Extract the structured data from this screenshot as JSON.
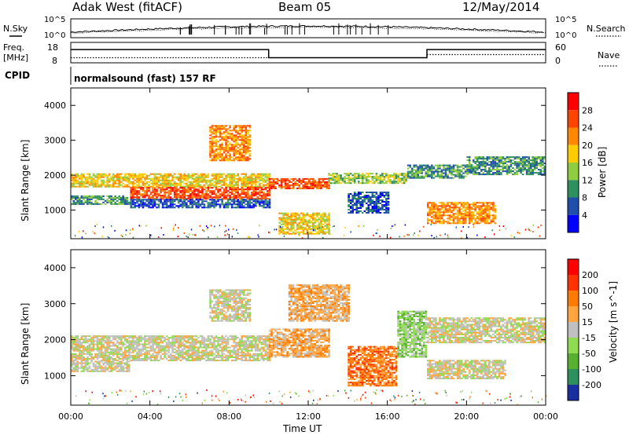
{
  "header": {
    "station": "Adak West (fitACF)",
    "beam": "Beam 05",
    "date": "12/May/2014"
  },
  "side_labels": {
    "nsky": "N.Sky",
    "freq_top": "Freq.",
    "freq_unit": "[MHz]",
    "cpid": "CPID",
    "nsearch": "N.Search",
    "nave": "Nave"
  },
  "cpid_text": "normalsound (fast) 157 RF",
  "x_axis": {
    "label": "Time UT",
    "ticks": [
      "00:00",
      "04:00",
      "08:00",
      "12:00",
      "16:00",
      "20:00",
      "00:00"
    ],
    "range_hours": [
      0,
      24
    ]
  },
  "chart_data": [
    {
      "type": "line",
      "name": "noise",
      "left_ticks": [
        "10^5",
        "10^0"
      ],
      "right_ticks": [
        "10^5",
        "10^0"
      ],
      "scale": "log"
    },
    {
      "type": "line",
      "name": "frequency-nave",
      "left_ticks": [
        "18",
        "8"
      ],
      "left_range": [
        8,
        18
      ],
      "right_ticks": [
        "60",
        "0"
      ],
      "right_range": [
        0,
        60
      ],
      "freq_series": [
        {
          "x": 0,
          "y": 14.5
        },
        {
          "x": 10,
          "y": 14.5
        },
        {
          "x": 10,
          "y": 10.5
        },
        {
          "x": 18,
          "y": 10.5
        },
        {
          "x": 18,
          "y": 14.5
        },
        {
          "x": 24,
          "y": 14.5
        }
      ],
      "nave_value": 15
    },
    {
      "type": "heatmap",
      "name": "power",
      "ylabel": "Slant Range [km]",
      "y_ticks": [
        "1000",
        "2000",
        "3000",
        "4000"
      ],
      "ylim": [
        180,
        4500
      ],
      "colorbar_label": "Power [dB]",
      "colorbar_ticks": [
        "4",
        "8",
        "12",
        "16",
        "20",
        "24",
        "28"
      ],
      "colorbar_range": [
        0,
        32
      ],
      "colors": [
        "#0000ff",
        "#1f4faa",
        "#2f8f5f",
        "#8fcc3f",
        "#ffcc00",
        "#ff8800",
        "#ff4400",
        "#ff0000"
      ],
      "bands": [
        {
          "t0": 0,
          "t1": 10,
          "r0": 1650,
          "r1": 2050,
          "level": 4
        },
        {
          "t0": 3,
          "t1": 10,
          "r0": 1300,
          "r1": 1650,
          "level": 6
        },
        {
          "t0": 0,
          "t1": 3,
          "r0": 1150,
          "r1": 1400,
          "level": 2
        },
        {
          "t0": 3,
          "t1": 10,
          "r0": 1050,
          "r1": 1300,
          "level": 1
        },
        {
          "t0": 7,
          "t1": 9,
          "r0": 2400,
          "r1": 3400,
          "level": 5
        },
        {
          "t0": 10,
          "t1": 13,
          "r0": 1600,
          "r1": 1900,
          "level": 6
        },
        {
          "t0": 13,
          "t1": 17,
          "r0": 1750,
          "r1": 2050,
          "level": 3
        },
        {
          "t0": 14,
          "t1": 16,
          "r0": 900,
          "r1": 1500,
          "level": 1
        },
        {
          "t0": 17,
          "t1": 20,
          "r0": 1900,
          "r1": 2300,
          "level": 2
        },
        {
          "t0": 18,
          "t1": 21.5,
          "r0": 600,
          "r1": 1200,
          "level": 5
        },
        {
          "t0": 20,
          "t1": 24,
          "r0": 2000,
          "r1": 2500,
          "level": 2
        },
        {
          "t0": 10.5,
          "t1": 13,
          "r0": 300,
          "r1": 900,
          "level": 4
        }
      ]
    },
    {
      "type": "heatmap",
      "name": "velocity",
      "ylabel": "Slant Range [km]",
      "y_ticks": [
        "1000",
        "2000",
        "3000",
        "4000"
      ],
      "ylim": [
        180,
        4500
      ],
      "colorbar_label": "Velocity [m s^-1]",
      "colorbar_ticks": [
        "200",
        "100",
        "50",
        "15",
        "-15",
        "-50",
        "-100",
        "-200"
      ],
      "colors": [
        "#1a30a0",
        "#2f8f5f",
        "#58b030",
        "#8fdc50",
        "#c0c0c0",
        "#ffa640",
        "#ff7a00",
        "#ff3300",
        "#ff0000"
      ],
      "bands": [
        {
          "t0": 0,
          "t1": 10,
          "r0": 1400,
          "r1": 2100,
          "level": 4
        },
        {
          "t0": 0,
          "t1": 3,
          "r0": 1100,
          "r1": 1400,
          "level": 4
        },
        {
          "t0": 7,
          "t1": 9,
          "r0": 2500,
          "r1": 3400,
          "level": 4
        },
        {
          "t0": 10,
          "t1": 13,
          "r0": 1500,
          "r1": 2300,
          "level": 5
        },
        {
          "t0": 14,
          "t1": 16.5,
          "r0": 700,
          "r1": 1800,
          "level": 6
        },
        {
          "t0": 16.5,
          "t1": 18,
          "r0": 1500,
          "r1": 2800,
          "level": 3
        },
        {
          "t0": 18,
          "t1": 24,
          "r0": 1900,
          "r1": 2600,
          "level": 4
        },
        {
          "t0": 18,
          "t1": 22,
          "r0": 900,
          "r1": 1400,
          "level": 4
        },
        {
          "t0": 11,
          "t1": 14,
          "r0": 2500,
          "r1": 3500,
          "level": 5
        }
      ]
    }
  ]
}
